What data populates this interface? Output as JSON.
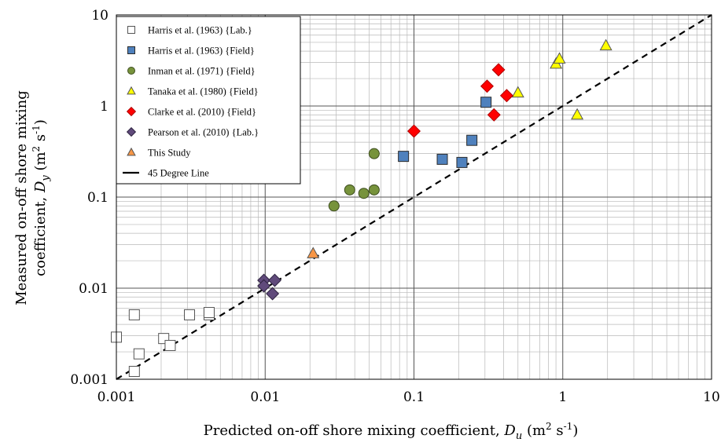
{
  "chart_data": {
    "type": "scatter",
    "title": "",
    "xscale": "log",
    "yscale": "log",
    "xlim": [
      0.001,
      10
    ],
    "ylim": [
      0.001,
      10
    ],
    "grid": true,
    "legend_position": "top-left",
    "xlabel": {
      "prefix": "Predicted on-off shore mixing coefficient, ",
      "var": "D",
      "sub": "u",
      "unit_open": " (m",
      "unit_exp1": "2",
      "unit_mid": " s",
      "unit_exp2": "-1",
      "unit_close": ")"
    },
    "ylabel": {
      "line1": "Measured on-off shore mixing",
      "prefix": "coefficient, ",
      "var": "D",
      "sub": "y",
      "unit_open": " (m",
      "unit_exp1": "2",
      "unit_mid": " s",
      "unit_exp2": "-1",
      "unit_close": ")"
    },
    "x_ticks": [
      {
        "value": 0.001,
        "label": "0.001"
      },
      {
        "value": 0.01,
        "label": "0.01"
      },
      {
        "value": 0.1,
        "label": "0.1"
      },
      {
        "value": 1,
        "label": "1"
      },
      {
        "value": 10,
        "label": "10"
      }
    ],
    "y_ticks": [
      {
        "value": 0.001,
        "label": "0.001"
      },
      {
        "value": 0.01,
        "label": "0.01"
      },
      {
        "value": 0.1,
        "label": "0.1"
      },
      {
        "value": 1,
        "label": "1"
      },
      {
        "value": 10,
        "label": "10"
      }
    ],
    "series": [
      {
        "name": "Harris et al. (1963) {Lab.}",
        "marker": "square",
        "fill": "#ffffff",
        "stroke": "#555555",
        "points": [
          [
            0.001,
            0.0029
          ],
          [
            0.00132,
            0.0051
          ],
          [
            0.00132,
            0.00122
          ],
          [
            0.00142,
            0.0019
          ],
          [
            0.00208,
            0.0028
          ],
          [
            0.0023,
            0.00235
          ],
          [
            0.0031,
            0.0051
          ],
          [
            0.0042,
            0.0051
          ],
          [
            0.0042,
            0.0054
          ]
        ]
      },
      {
        "name": "Harris et al. (1963) {Field}",
        "marker": "square",
        "fill": "#4f81bd",
        "stroke": "#2b2b2b",
        "points": [
          [
            0.085,
            0.28
          ],
          [
            0.155,
            0.26
          ],
          [
            0.21,
            0.24
          ],
          [
            0.245,
            0.42
          ],
          [
            0.305,
            1.1
          ]
        ]
      },
      {
        "name": "Inman et al. (1971) {Field}",
        "marker": "circle",
        "fill": "#77933c",
        "stroke": "#3d4d1f",
        "points": [
          [
            0.029,
            0.08
          ],
          [
            0.037,
            0.12
          ],
          [
            0.046,
            0.11
          ],
          [
            0.054,
            0.12
          ],
          [
            0.054,
            0.3
          ]
        ]
      },
      {
        "name": "Tanaka et al. (1980) {Field}",
        "marker": "triangle",
        "fill": "#ffff00",
        "stroke": "#555555",
        "points": [
          [
            0.5,
            1.4
          ],
          [
            0.9,
            2.9
          ],
          [
            0.95,
            3.3
          ],
          [
            1.25,
            0.8
          ],
          [
            1.95,
            4.6
          ]
        ]
      },
      {
        "name": "Clarke et al. (2010) {Field}",
        "marker": "diamond",
        "fill": "#ff0000",
        "stroke": "#b00000",
        "points": [
          [
            0.1,
            0.53
          ],
          [
            0.31,
            1.65
          ],
          [
            0.345,
            0.8
          ],
          [
            0.37,
            2.5
          ],
          [
            0.42,
            1.3
          ]
        ]
      },
      {
        "name": "Pearson et al. (2010) {Lab.}",
        "marker": "diamond",
        "fill": "#604a7b",
        "stroke": "#2e2340",
        "points": [
          [
            0.0098,
            0.0122
          ],
          [
            0.0098,
            0.0106
          ],
          [
            0.0112,
            0.0087
          ],
          [
            0.0116,
            0.0122
          ]
        ]
      },
      {
        "name": "This Study",
        "marker": "triangle",
        "fill": "#f79646",
        "stroke": "#555555",
        "points": [
          [
            0.021,
            0.024
          ]
        ]
      },
      {
        "name": "45 Degree Line",
        "marker": "dashed-line",
        "stroke": "#000000",
        "points": [
          [
            0.001,
            0.001
          ],
          [
            10,
            10
          ]
        ]
      }
    ]
  }
}
